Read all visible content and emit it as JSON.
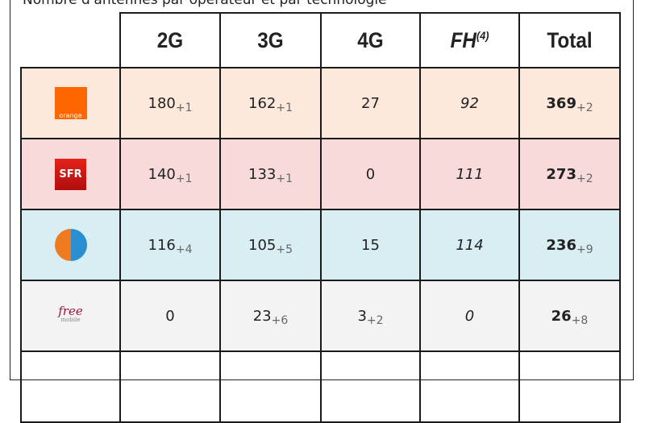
{
  "title": "Nombre d'antennes par opérateur et par technologie",
  "headers": [
    "2G",
    "3G",
    "4G",
    "FH",
    "(4)",
    "Total"
  ],
  "rows": [
    {
      "operator": "orange",
      "logo_text": "orange",
      "bg": "#fde8dc",
      "cells": [
        [
          "180",
          "+1"
        ],
        [
          "162",
          "+1"
        ],
        [
          "27",
          ""
        ],
        [
          "92",
          ""
        ],
        [
          "369",
          "+2"
        ]
      ]
    },
    {
      "operator": "SFR",
      "logo_text": "SFR",
      "bg": "#f8dadb",
      "cells": [
        [
          "140",
          "+1"
        ],
        [
          "133",
          "+1"
        ],
        [
          "0",
          ""
        ],
        [
          "111",
          ""
        ],
        [
          "273",
          "+2"
        ]
      ]
    },
    {
      "operator": "Bouygues Telecom",
      "logo_text": "",
      "bg": "#d8eef3",
      "cells": [
        [
          "116",
          "+4"
        ],
        [
          "105",
          "+5"
        ],
        [
          "15",
          ""
        ],
        [
          "114",
          ""
        ],
        [
          "236",
          "+9"
        ]
      ]
    },
    {
      "operator": "Free mobile",
      "logo_text": "free",
      "logo_sub": "mobile",
      "bg": "#f3f3f3",
      "cells": [
        [
          "0",
          ""
        ],
        [
          "23",
          "+6"
        ],
        [
          "3",
          "+2"
        ],
        [
          "0",
          ""
        ],
        [
          "26",
          "+8"
        ]
      ]
    }
  ]
}
